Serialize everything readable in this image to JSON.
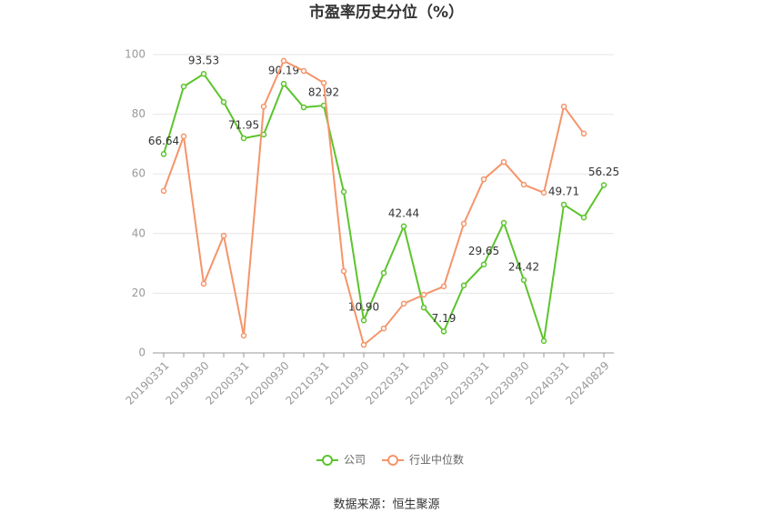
{
  "chart_data": {
    "type": "line",
    "title": "市盈率历史分位（%）",
    "source": "数据来源：恒生聚源",
    "categories": [
      "20190331",
      null,
      "20190930",
      null,
      "20200331",
      null,
      "20200930",
      null,
      "20210331",
      null,
      "20210930",
      null,
      "20220331",
      null,
      "20220930",
      null,
      "20230331",
      null,
      "20230930",
      null,
      "20240331",
      null,
      "20240829"
    ],
    "series": [
      {
        "name": "公司",
        "color": "#5cc42c",
        "values": [
          66.64,
          89.3,
          93.53,
          84.1,
          71.95,
          73.2,
          90.19,
          82.3,
          82.92,
          54.0,
          10.9,
          26.8,
          42.44,
          15.2,
          7.19,
          22.6,
          29.65,
          43.6,
          24.42,
          4.0,
          49.71,
          45.4,
          56.25
        ],
        "value_labels": [
          "66.64",
          null,
          "93.53",
          null,
          "71.95",
          null,
          "90.19",
          null,
          "82.92",
          null,
          "10.90",
          null,
          "42.44",
          null,
          "7.19",
          null,
          "29.65",
          null,
          "24.42",
          null,
          "49.71",
          null,
          "56.25"
        ]
      },
      {
        "name": "行业中位数",
        "color": "#f4956a",
        "values": [
          54.3,
          72.6,
          23.2,
          39.3,
          5.8,
          82.6,
          97.9,
          94.5,
          90.5,
          27.4,
          2.7,
          8.2,
          16.5,
          19.5,
          22.3,
          43.3,
          58.2,
          64.0,
          56.4,
          53.7,
          82.6,
          73.5,
          null
        ]
      }
    ],
    "ylim": [
      0,
      100
    ],
    "yticks": [
      0,
      20,
      40,
      60,
      80,
      100
    ],
    "grid": true
  }
}
